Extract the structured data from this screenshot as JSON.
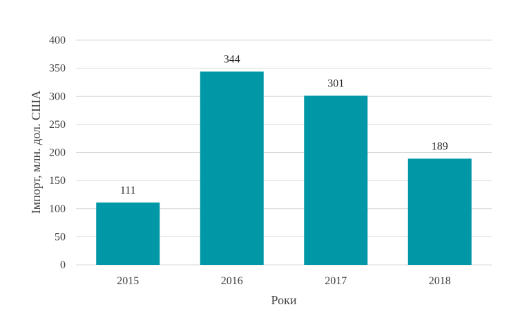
{
  "chart_data": {
    "type": "bar",
    "categories": [
      "2015",
      "2016",
      "2017",
      "2018"
    ],
    "values": [
      111,
      344,
      301,
      189
    ],
    "data_labels": [
      "111",
      "344",
      "301",
      "189"
    ],
    "xlabel": "Роки",
    "ylabel": "Імпорт, млн. дол. США",
    "ylim": [
      0,
      400
    ],
    "yticks": [
      "0",
      "50",
      "100",
      "150",
      "200",
      "250",
      "300",
      "350",
      "400"
    ],
    "grid": true,
    "legend": "none",
    "bar_color": "#0097a7",
    "grid_color": "#d9d9d9"
  }
}
